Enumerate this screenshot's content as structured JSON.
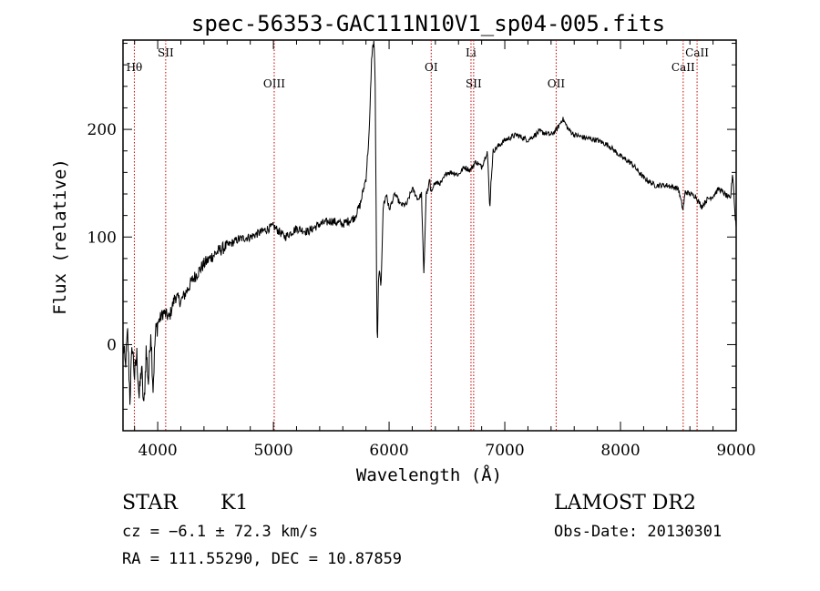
{
  "chart_data": {
    "type": "line",
    "title": "spec-56353-GAC111N10V1_sp04-005.fits",
    "xlabel": "Wavelength (Å)",
    "ylabel": "Flux (relative)",
    "xlim": [
      3700,
      9000
    ],
    "ylim": [
      -80,
      283
    ],
    "xticks": [
      4000,
      5000,
      6000,
      7000,
      8000,
      9000
    ],
    "yticks": [
      0,
      100,
      200
    ],
    "grid": false,
    "lines": [
      {
        "label": "Hθ",
        "x": 3798,
        "row": "upper"
      },
      {
        "label": "SII",
        "x": 4069,
        "row": "top"
      },
      {
        "label": "OIII",
        "x": 5007,
        "row": "lower"
      },
      {
        "label": "OI",
        "x": 6364,
        "row": "upper"
      },
      {
        "label": "Li",
        "x": 6708,
        "row": "top"
      },
      {
        "label": "SII",
        "x": 6731,
        "row": "lower"
      },
      {
        "label": "OII",
        "x": 7444,
        "row": "lower"
      },
      {
        "label": "CaII",
        "x": 8542,
        "row": "upper"
      },
      {
        "label": "CaII",
        "x": 8662,
        "row": "top"
      }
    ],
    "series": [
      {
        "x": [
          3700,
          3720,
          3740,
          3760,
          3780,
          3800,
          3820,
          3840,
          3860,
          3880,
          3900,
          3920,
          3940,
          3960,
          3980,
          4000,
          4050,
          4100,
          4150,
          4200,
          4300,
          4400,
          4500,
          4600,
          4700,
          4800,
          4900,
          5000,
          5100,
          5200,
          5300,
          5400,
          5500,
          5600,
          5700,
          5750,
          5800,
          5830,
          5850,
          5870,
          5880,
          5890,
          5895,
          5900,
          5910,
          5930,
          5950,
          5980,
          6000,
          6050,
          6100,
          6150,
          6200,
          6250,
          6280,
          6300,
          6320,
          6340,
          6350,
          6360,
          6380,
          6400,
          6450,
          6500,
          6550,
          6600,
          6650,
          6700,
          6750,
          6800,
          6850,
          6870,
          6880,
          6900,
          6950,
          7000,
          7100,
          7200,
          7300,
          7400,
          7450,
          7500,
          7550,
          7600,
          7700,
          7800,
          7900,
          8000,
          8100,
          8200,
          8300,
          8400,
          8500,
          8540,
          8560,
          8600,
          8650,
          8700,
          8750,
          8800,
          8850,
          8900,
          8950,
          8970,
          8990,
          9000
        ],
        "y": [
          0,
          -20,
          10,
          -50,
          0,
          -30,
          -10,
          -50,
          -20,
          -60,
          -5,
          -35,
          15,
          -40,
          10,
          20,
          30,
          25,
          45,
          40,
          60,
          75,
          85,
          92,
          98,
          100,
          105,
          110,
          100,
          108,
          105,
          112,
          115,
          112,
          118,
          130,
          155,
          200,
          270,
          283,
          240,
          100,
          10,
          5,
          70,
          55,
          130,
          140,
          125,
          140,
          130,
          130,
          145,
          135,
          140,
          65,
          140,
          145,
          155,
          140,
          148,
          150,
          150,
          160,
          160,
          158,
          165,
          162,
          170,
          165,
          180,
          125,
          150,
          180,
          185,
          190,
          195,
          190,
          198,
          195,
          200,
          210,
          200,
          195,
          192,
          190,
          185,
          175,
          168,
          155,
          148,
          148,
          145,
          125,
          142,
          140,
          138,
          128,
          135,
          138,
          145,
          140,
          135,
          160,
          120,
          110
        ]
      }
    ]
  },
  "info": {
    "obj_class": "STAR",
    "subclass": "K1",
    "survey": "LAMOST DR2",
    "cz": "cz = −6.1 ± 72.3 km/s",
    "obs_date": "Obs-Date: 20130301",
    "coords": "RA = 111.55290, DEC =  10.87859"
  }
}
